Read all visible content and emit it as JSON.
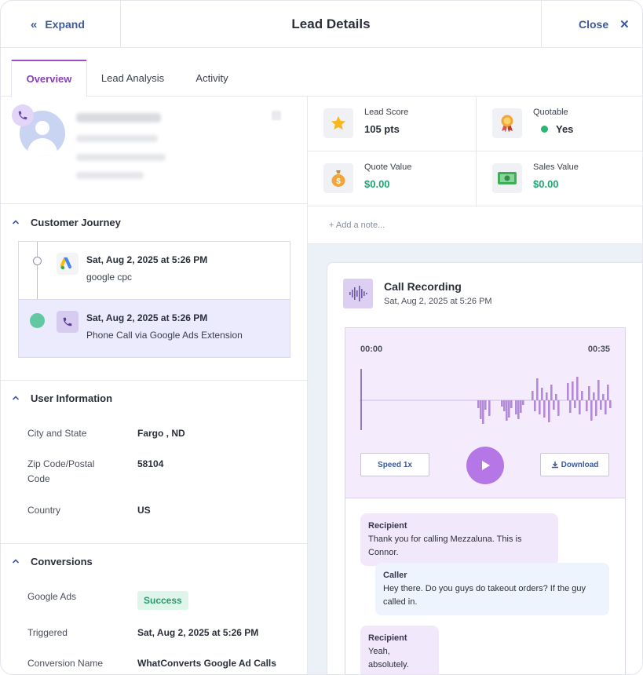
{
  "header": {
    "expand_label": "Expand",
    "title": "Lead Details",
    "close_label": "Close"
  },
  "tabs": [
    {
      "label": "Overview",
      "active": true
    },
    {
      "label": "Lead Analysis",
      "active": false
    },
    {
      "label": "Activity",
      "active": false
    }
  ],
  "sections": {
    "journey_title": "Customer Journey",
    "user_info_title": "User Information",
    "conversions_title": "Conversions"
  },
  "journey": [
    {
      "date": "Sat, Aug 2, 2025 at 5:26 PM",
      "source": "google cpc",
      "icon": "google-ads-icon"
    },
    {
      "date": "Sat, Aug 2, 2025 at 5:26 PM",
      "source": "Phone Call via Google Ads Extension",
      "icon": "phone-icon"
    }
  ],
  "user_info": {
    "city_label": "City and State",
    "city_value": "Fargo , ND",
    "zip_label": "Zip Code/Postal Code",
    "zip_value": "58104",
    "country_label": "Country",
    "country_value": "US"
  },
  "conversions": {
    "google_ads_label": "Google Ads",
    "google_ads_status": "Success",
    "triggered_label": "Triggered",
    "triggered_value": "Sat, Aug 2, 2025 at 5:26 PM",
    "name_label": "Conversion Name",
    "name_value": "WhatConverts Google Ad Calls"
  },
  "stats": {
    "lead_score_label": "Lead Score",
    "lead_score_value": "105 pts",
    "quotable_label": "Quotable",
    "quotable_value": "Yes",
    "quote_value_label": "Quote Value",
    "quote_value_value": "$0.00",
    "sales_value_label": "Sales Value",
    "sales_value_value": "$0.00"
  },
  "note": {
    "add_label": "+ Add a note..."
  },
  "recording": {
    "title": "Call Recording",
    "date": "Sat, Aug 2, 2025 at 5:26 PM",
    "time_current": "00:00",
    "time_total": "00:35",
    "progress": 0,
    "speed_label": "Speed 1x",
    "download_label": "Download"
  },
  "transcript": [
    {
      "speaker": "Recipient",
      "text": "Thank you for calling Mezzaluna. This is Connor."
    },
    {
      "speaker": "Caller",
      "text": "Hey there. Do you guys do takeout orders? If the guy called in."
    },
    {
      "speaker": "Recipient",
      "text": "Yeah, absolutely."
    }
  ],
  "colors": {
    "accent_purple": "#9b4ec9",
    "link_blue": "#3d5a9e",
    "money_green": "#1ea770",
    "success_bg": "#dff5ec"
  }
}
